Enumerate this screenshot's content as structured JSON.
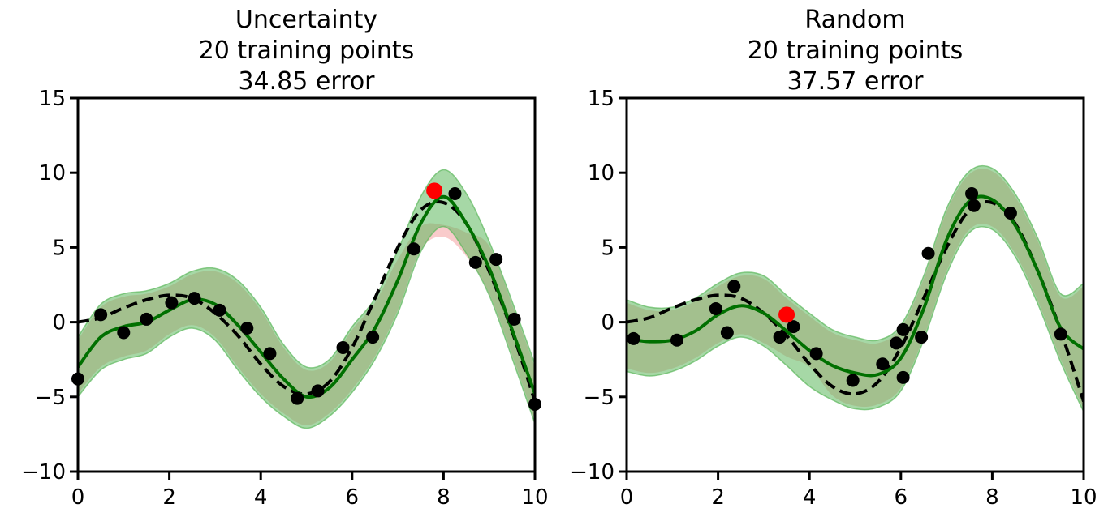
{
  "chart_data": [
    {
      "type": "line",
      "title_lines": [
        "Uncertainty",
        "20 training points",
        "34.85 error"
      ],
      "xlabel": "",
      "ylabel": "",
      "xlim": [
        0,
        10
      ],
      "ylim": [
        -10,
        15
      ],
      "x_ticks": [
        "0",
        "2",
        "4",
        "6",
        "8",
        "10"
      ],
      "y_ticks": [
        "15",
        "10",
        "5",
        "0",
        "−5",
        "−10"
      ],
      "grid": false,
      "colors": {
        "true_function": "#000000",
        "mean": "#007000",
        "band_green": "#5cb85c",
        "band_red": "#f4a0a0",
        "band_overlap": "#a8a870",
        "training_points": "#000000",
        "selected_point": "#ff0000"
      },
      "true_function": {
        "x": [
          0,
          0.5,
          1,
          1.5,
          2,
          2.5,
          3,
          3.5,
          4,
          4.5,
          5,
          5.5,
          6,
          6.5,
          7,
          7.5,
          8,
          8.5,
          9,
          9.5,
          10
        ],
        "y": [
          0.0,
          0.3,
          0.95,
          1.5,
          1.8,
          1.6,
          0.6,
          -0.9,
          -2.8,
          -4.3,
          -4.8,
          -4.0,
          -1.7,
          1.6,
          5.0,
          7.5,
          8.0,
          6.6,
          3.4,
          -0.6,
          -5.3
        ]
      },
      "mean": {
        "x": [
          0,
          0.5,
          1,
          1.5,
          2,
          2.5,
          3,
          3.5,
          4,
          4.5,
          5,
          5.5,
          6,
          6.5,
          7,
          7.5,
          8,
          8.5,
          9,
          9.5,
          10
        ],
        "y": [
          -3.0,
          -1.0,
          -0.3,
          0.0,
          0.8,
          1.5,
          1.2,
          -0.2,
          -2.0,
          -3.8,
          -5.0,
          -4.4,
          -2.5,
          -0.4,
          2.8,
          6.6,
          8.4,
          6.6,
          3.6,
          -0.5,
          -4.8
        ]
      },
      "green_band": {
        "upper": [
          -1.0,
          1.2,
          1.9,
          2.1,
          2.6,
          3.4,
          3.6,
          2.8,
          1.0,
          -1.5,
          -3.0,
          -2.5,
          -0.3,
          1.6,
          4.8,
          8.4,
          10.2,
          8.6,
          5.4,
          1.4,
          -2.8
        ],
        "lower": [
          -5.0,
          -3.2,
          -2.5,
          -2.1,
          -1.0,
          -0.4,
          -1.2,
          -3.2,
          -5.0,
          -6.3,
          -7.1,
          -6.3,
          -4.7,
          -2.5,
          0.6,
          4.7,
          6.4,
          4.6,
          1.8,
          -2.4,
          -6.8
        ]
      },
      "red_band": {
        "upper": [
          -1.2,
          1.0,
          1.7,
          1.9,
          2.4,
          3.2,
          3.4,
          2.6,
          0.8,
          -1.7,
          -3.2,
          -2.7,
          -0.5,
          1.3,
          4.2,
          6.4,
          6.5,
          6.0,
          5.1,
          1.2,
          -3.0
        ],
        "lower": [
          -4.8,
          -3.0,
          -2.3,
          -1.9,
          -0.8,
          -0.2,
          -1.0,
          -3.0,
          -4.8,
          -6.1,
          -6.9,
          -6.1,
          -4.5,
          -2.3,
          0.8,
          4.8,
          5.7,
          4.4,
          1.9,
          -2.2,
          -6.6
        ]
      },
      "training_points": {
        "x": [
          0.0,
          0.5,
          1.0,
          1.5,
          2.05,
          2.55,
          3.1,
          3.7,
          4.2,
          4.8,
          5.25,
          5.8,
          6.45,
          7.35,
          8.25,
          8.7,
          9.15,
          9.55,
          10.0
        ],
        "y": [
          -3.8,
          0.5,
          -0.7,
          0.2,
          1.3,
          1.6,
          0.8,
          -0.4,
          -2.1,
          -5.1,
          -4.6,
          -1.7,
          -1.0,
          4.9,
          8.6,
          4.0,
          4.2,
          0.2,
          -5.5
        ]
      },
      "selected_point": {
        "x": [
          7.8
        ],
        "y": [
          8.8
        ]
      }
    },
    {
      "type": "line",
      "title_lines": [
        "Random",
        "20 training points",
        "37.57 error"
      ],
      "xlabel": "",
      "ylabel": "",
      "xlim": [
        0,
        10
      ],
      "ylim": [
        -10,
        15
      ],
      "x_ticks": [
        "0",
        "2",
        "4",
        "6",
        "8",
        "10"
      ],
      "y_ticks": [
        "15",
        "10",
        "5",
        "0",
        "−5",
        "−10"
      ],
      "grid": false,
      "colors": {
        "true_function": "#000000",
        "mean": "#007000",
        "band_green": "#5cb85c",
        "band_red": "#f4a0a0",
        "band_overlap": "#a8a870",
        "training_points": "#000000",
        "selected_point": "#ff0000"
      },
      "true_function": {
        "x": [
          0,
          0.5,
          1,
          1.5,
          2,
          2.5,
          3,
          3.5,
          4,
          4.5,
          5,
          5.5,
          6,
          6.5,
          7,
          7.5,
          8,
          8.5,
          9,
          9.5,
          10
        ],
        "y": [
          0.0,
          0.3,
          0.95,
          1.5,
          1.8,
          1.6,
          0.6,
          -0.9,
          -2.8,
          -4.3,
          -4.8,
          -4.0,
          -1.7,
          1.6,
          5.0,
          7.5,
          8.0,
          6.6,
          3.4,
          -0.6,
          -5.3
        ]
      },
      "mean": {
        "x": [
          0,
          0.5,
          1,
          1.5,
          2,
          2.5,
          3,
          3.5,
          4,
          4.5,
          5,
          5.5,
          6,
          6.5,
          7,
          7.5,
          8,
          8.5,
          9,
          9.5,
          10
        ],
        "y": [
          -1.1,
          -1.3,
          -1.2,
          -0.6,
          0.5,
          1.1,
          0.6,
          -0.6,
          -1.9,
          -2.9,
          -3.4,
          -3.5,
          -2.4,
          0.9,
          5.5,
          8.1,
          8.2,
          6.5,
          3.4,
          -0.4,
          -1.8
        ]
      },
      "green_band": {
        "upper": [
          1.5,
          1.0,
          1.0,
          1.6,
          2.6,
          3.3,
          3.1,
          1.8,
          0.6,
          -0.5,
          -1.0,
          -1.2,
          -0.2,
          3.1,
          7.6,
          10.1,
          10.3,
          8.6,
          5.6,
          1.9,
          2.6
        ],
        "lower": [
          -3.3,
          -3.6,
          -3.3,
          -2.6,
          -1.6,
          -1.0,
          -1.6,
          -2.9,
          -4.3,
          -5.2,
          -5.8,
          -5.7,
          -4.6,
          -1.2,
          3.2,
          6.0,
          6.2,
          4.4,
          1.2,
          -2.7,
          -6.0
        ]
      },
      "red_band": {
        "upper": [
          1.3,
          0.8,
          0.8,
          1.4,
          2.4,
          3.1,
          2.9,
          1.6,
          0.4,
          -0.7,
          -1.2,
          -1.4,
          -0.4,
          2.9,
          7.4,
          9.9,
          10.1,
          8.4,
          5.4,
          1.7,
          2.4
        ],
        "lower": [
          -3.1,
          -3.4,
          -3.1,
          -2.4,
          -1.4,
          -0.8,
          -1.4,
          -2.3,
          -3.0,
          -4.9,
          -5.6,
          -5.5,
          -4.4,
          -1.0,
          3.4,
          6.2,
          6.4,
          4.6,
          1.4,
          -2.5,
          -5.8
        ]
      },
      "training_points": {
        "x": [
          0.15,
          1.1,
          1.95,
          2.2,
          2.35,
          3.35,
          3.65,
          4.15,
          4.95,
          5.6,
          5.9,
          6.05,
          6.05,
          6.45,
          6.6,
          7.55,
          7.6,
          8.4,
          9.5
        ],
        "y": [
          -1.1,
          -1.2,
          0.9,
          -0.7,
          2.4,
          -1.0,
          -0.3,
          -2.1,
          -3.9,
          -2.8,
          -1.4,
          -0.5,
          -3.7,
          -1.0,
          4.6,
          8.6,
          7.8,
          7.3,
          -0.8
        ]
      },
      "selected_point": {
        "x": [
          3.5
        ],
        "y": [
          0.5
        ]
      }
    }
  ]
}
